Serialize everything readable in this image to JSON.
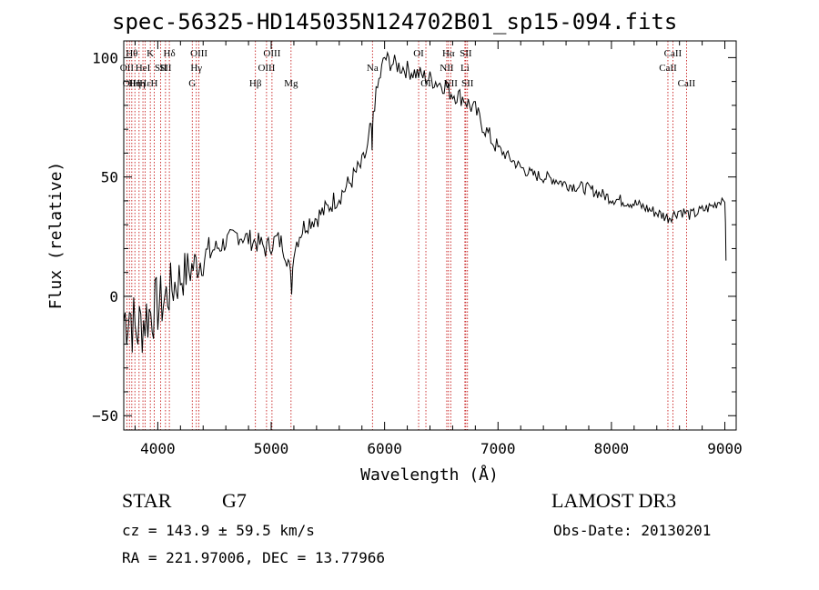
{
  "title": "spec-56325-HD145035N124702B01_sp15-094.fits",
  "object_class": "STAR",
  "subclass": "G7",
  "survey": "LAMOST DR3",
  "redshift_line": "cz = 143.9 ± 59.5 km/s",
  "obs_date_line": "Obs-Date: 20130201",
  "coords_line": "RA = 221.97006, DEC =  13.77966",
  "colors": {
    "line": "#000000",
    "marker": "#c00000",
    "background": "#ffffff"
  },
  "chart_data": {
    "type": "line",
    "xlabel": "Wavelength (Å)",
    "ylabel": "Flux (relative)",
    "xlim": [
      3700,
      9100
    ],
    "ylim": [
      -56,
      107
    ],
    "xticks": [
      4000,
      5000,
      6000,
      7000,
      8000,
      9000
    ],
    "xticklabels": [
      "4000",
      "5000",
      "6000",
      "7000",
      "8000",
      "9000"
    ],
    "yticks": [
      -50,
      0,
      50,
      100
    ],
    "yticklabels": [
      "−50",
      "0",
      "50",
      "100"
    ],
    "grid": false,
    "series": [
      {
        "x": [
          3700,
          3750,
          3800,
          3850,
          3900,
          3950,
          4000,
          4050,
          4100,
          4150,
          4200,
          4250,
          4300,
          4350,
          4400,
          4450,
          4500,
          4550,
          4600,
          4650,
          4700,
          4750,
          4800,
          4850,
          4900,
          4950,
          5000,
          5050,
          5100,
          5150,
          5180,
          5200,
          5250,
          5300,
          5350,
          5400,
          5450,
          5500,
          5550,
          5600,
          5650,
          5700,
          5750,
          5800,
          5850,
          5880,
          5890,
          5900,
          5950,
          6000,
          6050,
          6100,
          6150,
          6200,
          6250,
          6300,
          6350,
          6400,
          6450,
          6500,
          6550,
          6563,
          6600,
          6650,
          6700,
          6750,
          6800,
          6850,
          6900,
          6950,
          7000,
          7050,
          7100,
          7200,
          7300,
          7400,
          7500,
          7600,
          7700,
          7800,
          7900,
          8000,
          8100,
          8200,
          8300,
          8400,
          8500,
          8540,
          8600,
          8650,
          8700,
          8750,
          8800,
          8850,
          8900,
          8950,
          9000,
          9010
        ],
        "y": [
          -10,
          -5,
          -15,
          -12,
          -8,
          -6,
          -4,
          -2,
          2,
          5,
          8,
          10,
          12,
          14,
          16,
          18,
          20,
          21,
          23,
          24,
          26,
          25,
          24,
          23,
          22,
          20,
          22,
          24,
          22,
          15,
          4,
          20,
          26,
          30,
          32,
          33,
          35,
          37,
          40,
          42,
          45,
          48,
          52,
          55,
          62,
          72,
          60,
          78,
          90,
          100,
          98,
          97,
          96,
          95,
          94,
          93,
          92,
          91,
          90,
          89,
          88,
          86,
          85,
          84,
          83,
          80,
          78,
          73,
          69,
          65,
          62,
          60,
          58,
          54,
          51,
          50,
          49,
          47,
          46,
          45,
          43,
          41,
          40,
          39,
          37,
          35,
          33,
          34,
          36,
          35,
          34,
          35,
          36,
          37,
          38,
          40,
          42,
          15
        ]
      }
    ],
    "annotations": [
      {
        "x": 3727,
        "label": "OII",
        "row": 2
      },
      {
        "x": 3750,
        "label": "OII",
        "row": 3
      },
      {
        "x": 3771,
        "label": "Hθ",
        "row": 1
      },
      {
        "x": 3798,
        "label": "Hη",
        "row": 3
      },
      {
        "x": 3835,
        "label": "Hη",
        "row": 3
      },
      {
        "x": 3869,
        "label": "HeI",
        "row": 2
      },
      {
        "x": 3889,
        "label": "Hε",
        "row": 3
      },
      {
        "x": 3934,
        "label": "K",
        "row": 1
      },
      {
        "x": 3969,
        "label": "H",
        "row": 3
      },
      {
        "x": 4026,
        "label": "SII",
        "row": 2
      },
      {
        "x": 4068,
        "label": "SII",
        "row": 2
      },
      {
        "x": 4102,
        "label": "Hδ",
        "row": 1
      },
      {
        "x": 4304,
        "label": "G",
        "row": 3
      },
      {
        "x": 4340,
        "label": "Hγ",
        "row": 2
      },
      {
        "x": 4363,
        "label": "OIII",
        "row": 1
      },
      {
        "x": 4861,
        "label": "Hβ",
        "row": 3
      },
      {
        "x": 4959,
        "label": "OIII",
        "row": 2
      },
      {
        "x": 5007,
        "label": "OIII",
        "row": 1
      },
      {
        "x": 5175,
        "label": "Mg",
        "row": 3
      },
      {
        "x": 5893,
        "label": "Na",
        "row": 2
      },
      {
        "x": 6300,
        "label": "OI",
        "row": 1
      },
      {
        "x": 6364,
        "label": "OI",
        "row": 3
      },
      {
        "x": 6548,
        "label": "NII",
        "row": 2
      },
      {
        "x": 6563,
        "label": "Hα",
        "row": 1
      },
      {
        "x": 6583,
        "label": "NII",
        "row": 3
      },
      {
        "x": 6708,
        "label": "Li",
        "row": 2
      },
      {
        "x": 6716,
        "label": "SII",
        "row": 1
      },
      {
        "x": 6731,
        "label": "SII",
        "row": 3
      },
      {
        "x": 8498,
        "label": "CaII",
        "row": 2
      },
      {
        "x": 8542,
        "label": "CaII",
        "row": 1
      },
      {
        "x": 8662,
        "label": "CaII",
        "row": 3
      }
    ]
  }
}
